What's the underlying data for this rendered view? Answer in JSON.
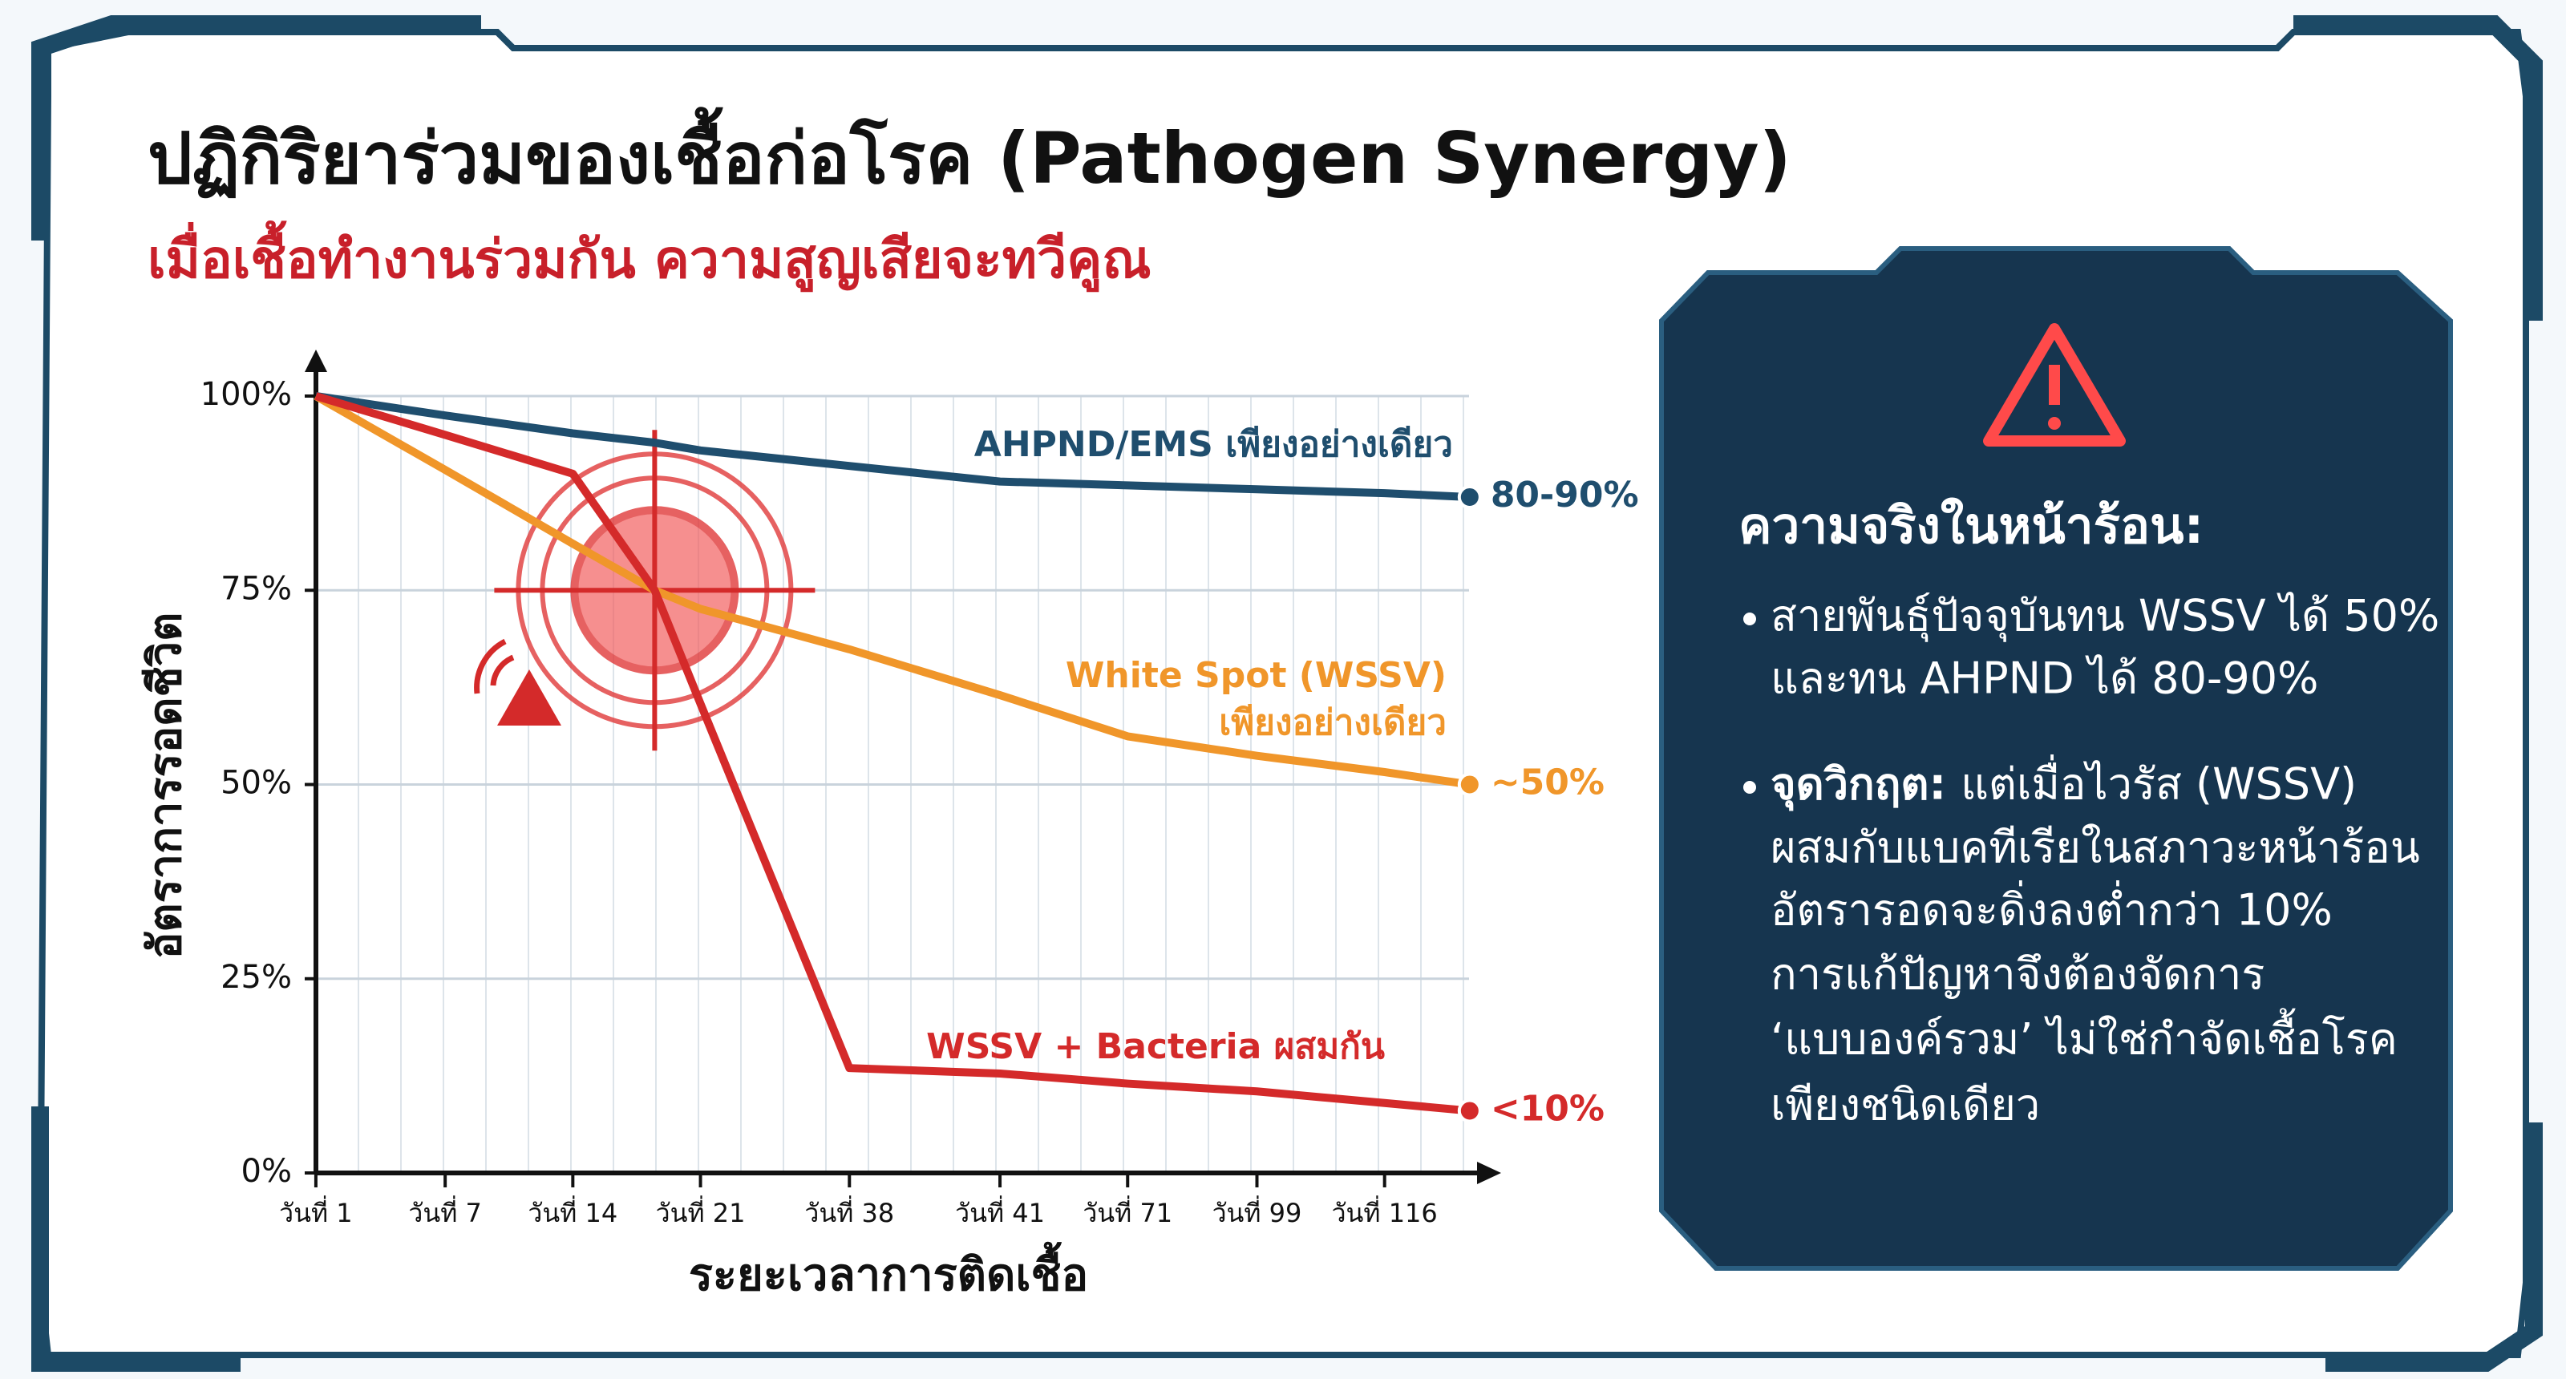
{
  "chart_data": {
    "type": "line",
    "title": "ปฏิกิริยาร่วมของเชื้อก่อโรค (Pathogen Synergy)",
    "subtitle": "เมื่อเชื้อทำงานร่วมกัน ความสูญเสียจะทวีคูณ",
    "x_label": "ระยะเวลาการติดเชื้อ",
    "y_label": "อัตราการรอดชีวิต",
    "categories": [
      "วันที่ 1",
      "วันที่ 7",
      "วันที่ 14",
      null,
      "วันที่ 21",
      "วันที่ 38",
      "วันที่ 41",
      "วันที่ 71",
      "วันที่ 99",
      "วันที่ 116",
      null
    ],
    "ylim": [
      0,
      100
    ],
    "yticks": [
      {
        "value": 0,
        "label": "0%"
      },
      {
        "value": 25,
        "label": "25%"
      },
      {
        "value": 50,
        "label": "50%"
      },
      {
        "value": 75,
        "label": "75%"
      },
      {
        "value": 100,
        "label": "100%"
      }
    ],
    "grid": true,
    "series": [
      {
        "label": [
          "AHPND/EMS เพียงอย่างเดียว"
        ],
        "end_label": "80-90%",
        "color": "#1f4e6e",
        "values": [
          100,
          97.5,
          95.2,
          94,
          93,
          91,
          89,
          88.5,
          88,
          87.5,
          87
        ]
      },
      {
        "label": [
          "White Spot (WSSV)",
          "เพียงอย่างเดียว"
        ],
        "end_label": "~50%",
        "color": "#f0962a",
        "values": [
          100,
          90.5,
          81,
          75,
          72.6,
          67.4,
          61.5,
          56.2,
          53.7,
          51.6,
          50
        ]
      },
      {
        "label": [
          "WSSV + Bacteria ผสมกัน"
        ],
        "end_label": "<10%",
        "color": "#d42a2a",
        "values": [
          100,
          95,
          90,
          75,
          60.4,
          13.5,
          12.8,
          11.5,
          10.5,
          9,
          8
        ]
      }
    ]
  },
  "panel": {
    "heading": "ความจริงในหน้าร้อน:",
    "bullets": [
      {
        "lines": [
          "สายพันธุ์ปัจจุบันทน WSSV ได้ 50%",
          "และทน AHPND ได้ 80-90%"
        ]
      },
      {
        "lead": "จุดวิกฤต:",
        "lines": [
          "แต่เมื่อไวรัส (WSSV)",
          "ผสมกับแบคทีเรียในสภาวะหน้าร้อน",
          "อัตรารอดจะดิ่งลงต่ำกว่า 10%",
          "การแก้ปัญหาจึงต้องจัดการ",
          "‘แบบองค์รวม’ ไม่ใช่กำจัดเชื้อโรค",
          "เพียงชนิดเดียว"
        ]
      }
    ]
  }
}
